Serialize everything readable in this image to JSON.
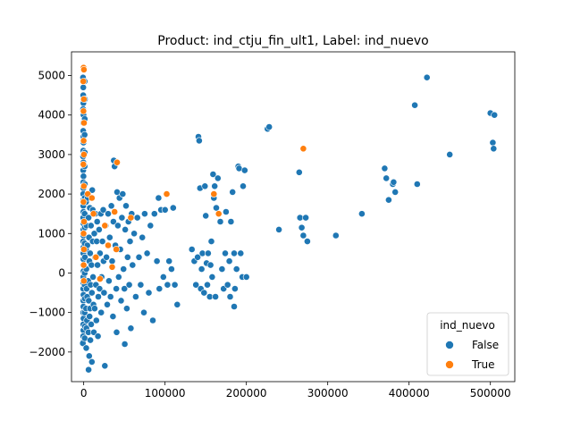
{
  "chart_data": {
    "type": "scatter",
    "title": "Product: ind_ctju_fin_ult1, Label: ind_nuevo",
    "xlabel": "",
    "ylabel": "",
    "xlim": [
      -15000,
      530000
    ],
    "ylim": [
      -2750,
      5600
    ],
    "xticks": [
      0,
      100000,
      200000,
      300000,
      400000,
      500000
    ],
    "yticks": [
      -2000,
      -1000,
      0,
      1000,
      2000,
      3000,
      4000,
      5000
    ],
    "grid": false,
    "legend": {
      "title": "ind_nuevo",
      "placement": "lower-right",
      "entries": [
        "False",
        "True"
      ]
    },
    "series": [
      {
        "name": "False",
        "color": "#1f77b4",
        "points": [
          [
            -800,
            4950
          ],
          [
            -500,
            4700
          ],
          [
            -600,
            4500
          ],
          [
            -400,
            4300
          ],
          [
            -700,
            4150
          ],
          [
            -300,
            4000
          ],
          [
            -500,
            3800
          ],
          [
            -600,
            3600
          ],
          [
            -400,
            3450
          ],
          [
            -300,
            3300
          ],
          [
            -500,
            3100
          ],
          [
            -700,
            2950
          ],
          [
            -400,
            2800
          ],
          [
            -600,
            2600
          ],
          [
            -300,
            2450
          ],
          [
            -500,
            2300
          ],
          [
            -400,
            2150
          ],
          [
            -600,
            2000
          ],
          [
            -300,
            1850
          ],
          [
            -500,
            1700
          ],
          [
            -400,
            1550
          ],
          [
            -600,
            1400
          ],
          [
            -300,
            1250
          ],
          [
            -500,
            1100
          ],
          [
            -400,
            950
          ],
          [
            -600,
            800
          ],
          [
            -300,
            650
          ],
          [
            -500,
            500
          ],
          [
            -400,
            350
          ],
          [
            -600,
            200
          ],
          [
            -300,
            50
          ],
          [
            -500,
            -100
          ],
          [
            -400,
            -250
          ],
          [
            -600,
            -400
          ],
          [
            -300,
            -550
          ],
          [
            -500,
            -700
          ],
          [
            -400,
            -850
          ],
          [
            -600,
            -1000
          ],
          [
            -300,
            -1150
          ],
          [
            -500,
            -1300
          ],
          [
            -400,
            -1450
          ],
          [
            -600,
            -1600
          ],
          [
            -800,
            -1750
          ],
          [
            -1000,
            -1780
          ],
          [
            1200,
            4850
          ],
          [
            1500,
            4400
          ],
          [
            1300,
            3900
          ],
          [
            1100,
            3500
          ],
          [
            1400,
            3050
          ],
          [
            1200,
            2700
          ],
          [
            1500,
            2250
          ],
          [
            1300,
            1900
          ],
          [
            1100,
            1500
          ],
          [
            1400,
            1150
          ],
          [
            1200,
            750
          ],
          [
            1500,
            400
          ],
          [
            1300,
            0
          ],
          [
            1100,
            -300
          ],
          [
            1400,
            -650
          ],
          [
            1200,
            -1000
          ],
          [
            1500,
            -1350
          ],
          [
            1300,
            -1650
          ],
          [
            3000,
            1800
          ],
          [
            3500,
            1200
          ],
          [
            2800,
            600
          ],
          [
            3200,
            100
          ],
          [
            3600,
            -400
          ],
          [
            2900,
            -900
          ],
          [
            3300,
            -1400
          ],
          [
            3100,
            -1900
          ],
          [
            4500,
            700
          ],
          [
            4200,
            -600
          ],
          [
            4800,
            1900
          ],
          [
            4000,
            -1200
          ],
          [
            6000,
            1400
          ],
          [
            6500,
            900
          ],
          [
            7000,
            300
          ],
          [
            5500,
            -200
          ],
          [
            6200,
            -700
          ],
          [
            7200,
            -1100
          ],
          [
            5800,
            -1500
          ],
          [
            6800,
            -2100
          ],
          [
            6000,
            -2450
          ],
          [
            7500,
            1650
          ],
          [
            8000,
            500
          ],
          [
            8500,
            -300
          ],
          [
            7800,
            -900
          ],
          [
            8200,
            -1700
          ],
          [
            9000,
            1200
          ],
          [
            9500,
            200
          ],
          [
            10000,
            -500
          ],
          [
            9200,
            -1300
          ],
          [
            10500,
            2100
          ],
          [
            10000,
            -2250
          ],
          [
            11000,
            800
          ],
          [
            11500,
            -100
          ],
          [
            12000,
            -800
          ],
          [
            11200,
            1600
          ],
          [
            12500,
            -1500
          ],
          [
            13000,
            1000
          ],
          [
            14000,
            400
          ],
          [
            15000,
            -300
          ],
          [
            13500,
            -900
          ],
          [
            14500,
            1500
          ],
          [
            16000,
            800
          ],
          [
            15500,
            -1200
          ],
          [
            17000,
            200
          ],
          [
            16500,
            1300
          ],
          [
            18000,
            -600
          ],
          [
            17500,
            -1600
          ],
          [
            19000,
            1100
          ],
          [
            20000,
            500
          ],
          [
            19500,
            -400
          ],
          [
            21000,
            1500
          ],
          [
            22000,
            -100
          ],
          [
            21500,
            -1000
          ],
          [
            23000,
            800
          ],
          [
            24000,
            1600
          ],
          [
            25000,
            -500
          ],
          [
            24500,
            300
          ],
          [
            26000,
            -2350
          ],
          [
            27000,
            1200
          ],
          [
            28000,
            400
          ],
          [
            29000,
            -800
          ],
          [
            30000,
            1500
          ],
          [
            31000,
            -200
          ],
          [
            32000,
            900
          ],
          [
            33000,
            -600
          ],
          [
            34000,
            1700
          ],
          [
            35000,
            300
          ],
          [
            36000,
            -1100
          ],
          [
            37000,
            2850
          ],
          [
            38000,
            2700
          ],
          [
            36500,
            1300
          ],
          [
            39000,
            700
          ],
          [
            40000,
            -400
          ],
          [
            40500,
            -1500
          ],
          [
            41000,
            2050
          ],
          [
            42000,
            1200
          ],
          [
            43000,
            -100
          ],
          [
            44000,
            1900
          ],
          [
            45000,
            600
          ],
          [
            46000,
            -700
          ],
          [
            47000,
            1400
          ],
          [
            48000,
            2000
          ],
          [
            49000,
            100
          ],
          [
            50000,
            -400
          ],
          [
            50500,
            -1800
          ],
          [
            51000,
            1100
          ],
          [
            52000,
            1700
          ],
          [
            53000,
            -900
          ],
          [
            54000,
            400
          ],
          [
            55000,
            1300
          ],
          [
            56000,
            -300
          ],
          [
            57000,
            800
          ],
          [
            58000,
            -1400
          ],
          [
            59000,
            1500
          ],
          [
            60000,
            200
          ],
          [
            62000,
            1000
          ],
          [
            64000,
            -600
          ],
          [
            66000,
            1400
          ],
          [
            68000,
            400
          ],
          [
            70000,
            -300
          ],
          [
            72000,
            900
          ],
          [
            74000,
            -1000
          ],
          [
            75000,
            1500
          ],
          [
            78000,
            500
          ],
          [
            80000,
            -500
          ],
          [
            82000,
            1200
          ],
          [
            85000,
            -1200
          ],
          [
            87000,
            1500
          ],
          [
            90000,
            300
          ],
          [
            92000,
            1900
          ],
          [
            93000,
            -400
          ],
          [
            95000,
            1600
          ],
          [
            98000,
            -100
          ],
          [
            100000,
            1600
          ],
          [
            103000,
            -300
          ],
          [
            105000,
            300
          ],
          [
            108000,
            100
          ],
          [
            110000,
            1650
          ],
          [
            112000,
            -300
          ],
          [
            115000,
            -800
          ],
          [
            133000,
            600
          ],
          [
            136000,
            300
          ],
          [
            138000,
            -300
          ],
          [
            140000,
            400
          ],
          [
            141000,
            3450
          ],
          [
            142000,
            3350
          ],
          [
            143000,
            2150
          ],
          [
            144000,
            -400
          ],
          [
            145000,
            100
          ],
          [
            146000,
            500
          ],
          [
            148000,
            -500
          ],
          [
            149000,
            2200
          ],
          [
            150000,
            1450
          ],
          [
            151000,
            250
          ],
          [
            152000,
            -300
          ],
          [
            153000,
            500
          ],
          [
            155000,
            -600
          ],
          [
            156000,
            200
          ],
          [
            157000,
            800
          ],
          [
            158000,
            -100
          ],
          [
            159000,
            2500
          ],
          [
            160000,
            1900
          ],
          [
            161000,
            2200
          ],
          [
            162000,
            -600
          ],
          [
            163000,
            1650
          ],
          [
            165000,
            2400
          ],
          [
            168000,
            1300
          ],
          [
            170000,
            100
          ],
          [
            172000,
            -400
          ],
          [
            174000,
            500
          ],
          [
            175000,
            1550
          ],
          [
            177000,
            -300
          ],
          [
            179000,
            300
          ],
          [
            180000,
            -600
          ],
          [
            181000,
            1300
          ],
          [
            183000,
            2050
          ],
          [
            185000,
            500
          ],
          [
            186000,
            -400
          ],
          [
            188000,
            100
          ],
          [
            190000,
            2700
          ],
          [
            191000,
            2650
          ],
          [
            193000,
            500
          ],
          [
            195000,
            -100
          ],
          [
            196000,
            2200
          ],
          [
            198000,
            2600
          ],
          [
            200000,
            -100
          ],
          [
            185000,
            -850
          ],
          [
            226000,
            3650
          ],
          [
            228000,
            3700
          ],
          [
            240000,
            1100
          ],
          [
            265000,
            2550
          ],
          [
            266000,
            1400
          ],
          [
            268000,
            1150
          ],
          [
            270000,
            950
          ],
          [
            273000,
            1400
          ],
          [
            275000,
            800
          ],
          [
            310000,
            950
          ],
          [
            342000,
            1500
          ],
          [
            370000,
            2650
          ],
          [
            372000,
            2400
          ],
          [
            375000,
            1850
          ],
          [
            380000,
            2250
          ],
          [
            381000,
            2300
          ],
          [
            383000,
            2050
          ],
          [
            407000,
            4250
          ],
          [
            410000,
            2250
          ],
          [
            422000,
            4950
          ],
          [
            450000,
            3000
          ],
          [
            500000,
            4050
          ],
          [
            503000,
            3300
          ],
          [
            504000,
            3150
          ],
          [
            505000,
            4000
          ]
        ]
      },
      {
        "name": "True",
        "color": "#ff7f0e",
        "points": [
          [
            -200,
            5200
          ],
          [
            300,
            5150
          ],
          [
            -500,
            4850
          ],
          [
            200,
            4400
          ],
          [
            -300,
            4100
          ],
          [
            400,
            3800
          ],
          [
            -100,
            3350
          ],
          [
            300,
            3000
          ],
          [
            -400,
            2750
          ],
          [
            200,
            2200
          ],
          [
            -300,
            1800
          ],
          [
            400,
            1300
          ],
          [
            -200,
            1000
          ],
          [
            300,
            600
          ],
          [
            -100,
            200
          ],
          [
            200,
            -200
          ],
          [
            5000,
            2000
          ],
          [
            10000,
            1900
          ],
          [
            12000,
            1500
          ],
          [
            15000,
            400
          ],
          [
            20000,
            -150
          ],
          [
            26000,
            1200
          ],
          [
            30000,
            700
          ],
          [
            35000,
            150
          ],
          [
            38000,
            1550
          ],
          [
            40000,
            600
          ],
          [
            41000,
            2800
          ],
          [
            58000,
            1400
          ],
          [
            102000,
            2000
          ],
          [
            160000,
            2000
          ],
          [
            166000,
            1500
          ],
          [
            270000,
            3150
          ]
        ]
      }
    ]
  }
}
